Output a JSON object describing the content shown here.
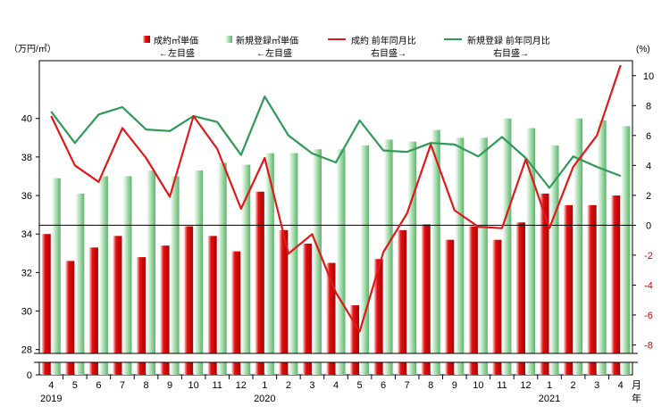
{
  "chart_data": {
    "type": "bar-line-combo",
    "left_unit": "（万円/㎡）",
    "right_unit": "(%)",
    "month_axis_label": "月",
    "year_axis_label": "年",
    "categories": [
      "4",
      "5",
      "6",
      "7",
      "8",
      "9",
      "10",
      "11",
      "12",
      "1",
      "2",
      "3",
      "4",
      "5",
      "6",
      "7",
      "8",
      "9",
      "10",
      "11",
      "12",
      "1",
      "2",
      "3",
      "4"
    ],
    "year_labels": [
      {
        "index": 0,
        "label": "2019"
      },
      {
        "index": 9,
        "label": "2020"
      },
      {
        "index": 21,
        "label": "2021"
      }
    ],
    "left_axis": {
      "ticks": [
        "0",
        "28",
        "30",
        "32",
        "34",
        "36",
        "38",
        "40"
      ],
      "range": [
        27,
        43
      ],
      "axis_break": true
    },
    "right_axis": {
      "ticks": [
        "-8",
        "-6",
        "-4",
        "-2",
        "0",
        "2",
        "4",
        "6",
        "8",
        "10"
      ],
      "range": [
        -10,
        11
      ]
    },
    "legend": [
      {
        "key": "contract_bar",
        "line1": "成約㎡単価",
        "line2": "←左目盛"
      },
      {
        "key": "new_bar",
        "line1": "新規登録㎡単価",
        "line2": "←左目盛"
      },
      {
        "key": "contract_line",
        "line1": "成約 前年同月比",
        "line2": "右目盛→"
      },
      {
        "key": "new_line",
        "line1": "新規登録 前年同月比",
        "line2": "右目盛→"
      }
    ],
    "series": [
      {
        "name": "成約㎡単価",
        "type": "bar",
        "axis": "left",
        "color": "#cc0000",
        "values": [
          34.0,
          32.6,
          33.3,
          33.9,
          32.8,
          33.4,
          34.4,
          33.9,
          33.1,
          36.2,
          34.2,
          33.5,
          32.5,
          30.3,
          32.7,
          34.2,
          34.5,
          33.7,
          34.4,
          33.7,
          34.6,
          36.1,
          35.5,
          35.5,
          36.0
        ]
      },
      {
        "name": "新規登録㎡単価",
        "type": "bar",
        "axis": "left",
        "color": "#7fc98a",
        "values": [
          36.9,
          36.1,
          37.0,
          37.0,
          37.3,
          37.0,
          37.3,
          37.7,
          37.6,
          38.2,
          38.2,
          38.4,
          38.4,
          38.6,
          38.9,
          38.8,
          39.4,
          39.0,
          39.0,
          40.0,
          39.5,
          38.6,
          40.0,
          39.9,
          39.6
        ]
      },
      {
        "name": "成約 前年同月比",
        "type": "line",
        "axis": "right",
        "color": "#e0191b",
        "values": [
          7.3,
          4.0,
          2.9,
          6.5,
          4.5,
          1.9,
          7.3,
          5.1,
          1.1,
          4.5,
          -1.9,
          -0.6,
          -4.5,
          -7.1,
          -1.8,
          0.8,
          5.4,
          1.0,
          -0.1,
          -0.2,
          4.4,
          -0.2,
          3.9,
          6.0,
          10.7
        ]
      },
      {
        "name": "新規登録 前年同月比",
        "type": "line",
        "axis": "right",
        "color": "#2e9a57",
        "values": [
          7.6,
          5.5,
          7.4,
          7.9,
          6.4,
          6.3,
          7.3,
          6.9,
          4.7,
          8.6,
          6.0,
          4.8,
          4.2,
          7.0,
          5.0,
          4.9,
          5.5,
          5.4,
          4.6,
          5.9,
          4.5,
          2.5,
          4.6,
          3.9,
          3.3
        ]
      }
    ]
  }
}
